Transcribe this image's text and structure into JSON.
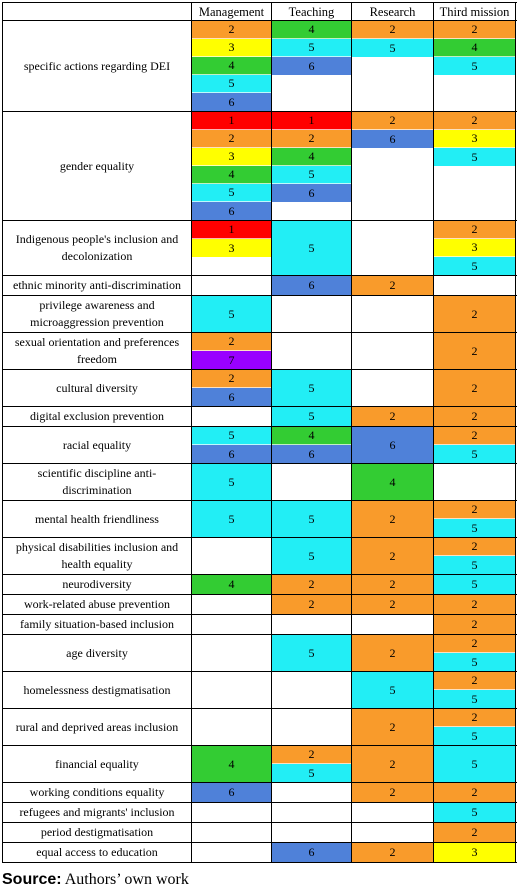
{
  "table": {
    "columns": [
      "Management",
      "Teaching",
      "Research",
      "Third mission"
    ],
    "colors": {
      "1": "#ff0000",
      "2": "#f99b2b",
      "3": "#ffff00",
      "4": "#33cc33",
      "5": "#22eef5",
      "6": "#4f81d9",
      "7": "#9900ff"
    },
    "rows": [
      {
        "label": "specific actions regarding DEI",
        "cells": [
          [
            2,
            3,
            4,
            5,
            6
          ],
          [
            4,
            5,
            6
          ],
          [
            2,
            5
          ],
          [
            2,
            4,
            5
          ]
        ]
      },
      {
        "label": "gender equality",
        "cells": [
          [
            1,
            2,
            3,
            4,
            5,
            6
          ],
          [
            1,
            2,
            4,
            5,
            6
          ],
          [
            2,
            6
          ],
          [
            2,
            3,
            5
          ]
        ]
      },
      {
        "label": "Indigenous people's inclusion and decolonization",
        "cells": [
          [
            1,
            3
          ],
          [
            5
          ],
          [],
          [
            2,
            3,
            5
          ]
        ]
      },
      {
        "label": "ethnic minority anti-discrimination",
        "cells": [
          [],
          [
            6
          ],
          [
            2
          ],
          []
        ]
      },
      {
        "label": "privilege awareness and microaggression prevention",
        "cells": [
          [
            5
          ],
          [],
          [],
          [
            2
          ]
        ]
      },
      {
        "label": "sexual orientation and preferences freedom",
        "cells": [
          [
            2,
            7
          ],
          [],
          [],
          [
            2
          ]
        ]
      },
      {
        "label": "cultural diversity",
        "cells": [
          [
            2,
            6
          ],
          [
            5
          ],
          [],
          [
            2
          ]
        ]
      },
      {
        "label": "digital exclusion prevention",
        "cells": [
          [],
          [
            5
          ],
          [
            2
          ],
          [
            2
          ]
        ]
      },
      {
        "label": "racial equality",
        "cells": [
          [
            5,
            6
          ],
          [
            4,
            6
          ],
          [
            6
          ],
          [
            2,
            5
          ]
        ]
      },
      {
        "label": "scientific discipline anti-discrimination",
        "cells": [
          [
            5
          ],
          [],
          [
            4
          ],
          []
        ]
      },
      {
        "label": "mental health friendliness",
        "cells": [
          [
            5
          ],
          [
            5
          ],
          [
            2
          ],
          [
            2,
            5
          ]
        ]
      },
      {
        "label": "physical disabilities inclusion and health equality",
        "cells": [
          [],
          [
            5
          ],
          [
            2
          ],
          [
            2,
            5
          ]
        ]
      },
      {
        "label": "neurodiversity",
        "cells": [
          [
            4
          ],
          [
            2
          ],
          [
            2
          ],
          [
            5
          ]
        ]
      },
      {
        "label": "work-related abuse prevention",
        "cells": [
          [],
          [
            2
          ],
          [
            2
          ],
          [
            2
          ]
        ]
      },
      {
        "label": "family situation-based inclusion",
        "cells": [
          [],
          [],
          [],
          [
            2
          ]
        ]
      },
      {
        "label": "age diversity",
        "cells": [
          [],
          [
            5
          ],
          [
            2
          ],
          [
            2,
            5
          ]
        ]
      },
      {
        "label": "homelessness destigmatisation",
        "cells": [
          [],
          [],
          [
            5
          ],
          [
            2,
            5
          ]
        ]
      },
      {
        "label": "rural and deprived areas inclusion",
        "cells": [
          [],
          [],
          [
            2
          ],
          [
            2,
            5
          ]
        ]
      },
      {
        "label": "financial equality",
        "cells": [
          [
            4
          ],
          [
            2,
            5
          ],
          [
            2
          ],
          [
            5
          ]
        ]
      },
      {
        "label": "working conditions equality",
        "cells": [
          [
            6
          ],
          [],
          [
            2
          ],
          [
            2
          ]
        ]
      },
      {
        "label": "refugees and migrants' inclusion",
        "cells": [
          [],
          [],
          [],
          [
            5
          ]
        ]
      },
      {
        "label": "period destigmatisation",
        "cells": [
          [],
          [],
          [],
          [
            2
          ]
        ]
      },
      {
        "label": "equal access to education",
        "cells": [
          [],
          [
            6
          ],
          [
            2
          ],
          [
            3
          ]
        ]
      }
    ]
  },
  "source": {
    "label": "Source:",
    "text": "Authors’ own work"
  }
}
